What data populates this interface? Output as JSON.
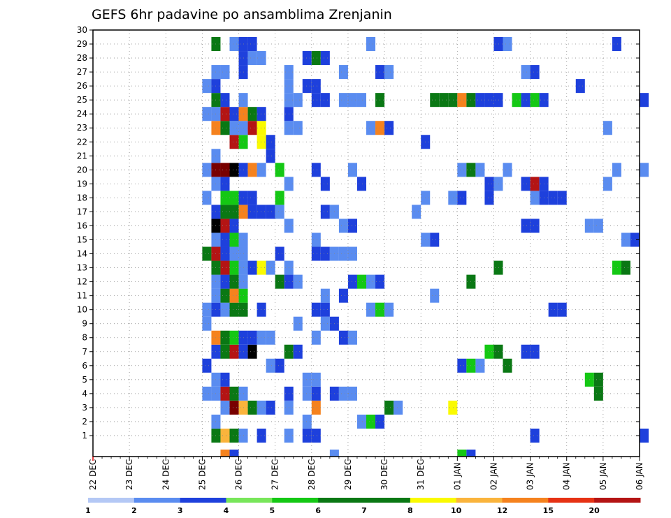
{
  "chart_data": {
    "type": "heatmap",
    "title": "GEFS 6hr padavine po ansamblima Zrenjanin",
    "xlabel": "",
    "ylabel": "",
    "x_tick_labels": [
      "22 DEC",
      "23 DEC",
      "24 DEC",
      "25 DEC",
      "26 DEC",
      "27 DEC",
      "28 DEC",
      "29 DEC",
      "30 DEC",
      "31 DEC",
      "01 JAN",
      "02 JAN",
      "03 JAN",
      "04 JAN",
      "05 JAN",
      "06 JAN"
    ],
    "y_tick_labels": [
      "1",
      "2",
      "3",
      "4",
      "5",
      "6",
      "7",
      "8",
      "9",
      "10",
      "11",
      "12",
      "13",
      "14",
      "15",
      "16",
      "17",
      "18",
      "19",
      "20",
      "21",
      "22",
      "23",
      "24",
      "25",
      "26",
      "27",
      "28",
      "29",
      "30"
    ],
    "x_range_steps": [
      0,
      60
    ],
    "y_range": [
      0,
      30
    ],
    "grid": true,
    "colorbar_levels": [
      "1",
      "2",
      "3",
      "4",
      "5",
      "6",
      "7",
      "8",
      "10",
      "12",
      "15",
      "20"
    ],
    "colorbar_colors": [
      "#b4c8f5",
      "#5a8cf0",
      "#1e40dc",
      "#1e40dc",
      "#78e65a",
      "#14c814",
      "#0a7814",
      "#0a7814",
      "#fafa00",
      "#fab43c",
      "#f5821e",
      "#e63214",
      "#b41414",
      "#780000"
    ],
    "cells": [
      [
        13,
        1,
        6
      ],
      [
        14,
        1,
        9
      ],
      [
        15,
        1,
        6
      ],
      [
        16,
        1,
        1
      ],
      [
        18,
        1,
        2
      ],
      [
        21,
        1,
        1
      ],
      [
        23,
        1,
        3
      ],
      [
        24,
        1,
        3
      ],
      [
        48,
        1,
        2
      ],
      [
        60,
        1,
        3
      ],
      [
        13,
        2,
        1
      ],
      [
        23,
        2,
        1
      ],
      [
        29,
        2,
        1
      ],
      [
        30,
        2,
        5
      ],
      [
        31,
        2,
        3
      ],
      [
        14,
        3,
        1
      ],
      [
        15,
        3,
        13
      ],
      [
        16,
        3,
        9
      ],
      [
        17,
        3,
        6
      ],
      [
        18,
        3,
        1
      ],
      [
        19,
        3,
        2
      ],
      [
        21,
        3,
        1
      ],
      [
        24,
        3,
        10
      ],
      [
        32,
        3,
        6
      ],
      [
        33,
        3,
        1
      ],
      [
        39,
        3,
        8
      ],
      [
        12,
        4,
        1
      ],
      [
        13,
        4,
        1
      ],
      [
        14,
        4,
        12
      ],
      [
        15,
        4,
        7
      ],
      [
        16,
        4,
        1
      ],
      [
        21,
        4,
        2
      ],
      [
        23,
        4,
        1
      ],
      [
        24,
        4,
        3
      ],
      [
        26,
        4,
        2
      ],
      [
        27,
        4,
        1
      ],
      [
        28,
        4,
        1
      ],
      [
        55,
        4,
        6
      ],
      [
        13,
        5,
        1
      ],
      [
        14,
        5,
        3
      ],
      [
        23,
        5,
        1
      ],
      [
        24,
        5,
        1
      ],
      [
        54,
        5,
        5
      ],
      [
        55,
        5,
        6
      ],
      [
        12,
        6,
        2
      ],
      [
        19,
        6,
        1
      ],
      [
        20,
        6,
        3
      ],
      [
        40,
        6,
        2
      ],
      [
        41,
        6,
        5
      ],
      [
        42,
        6,
        1
      ],
      [
        45,
        6,
        6
      ],
      [
        13,
        7,
        2
      ],
      [
        14,
        7,
        7
      ],
      [
        15,
        7,
        12
      ],
      [
        16,
        7,
        3
      ],
      [
        17,
        7,
        14
      ],
      [
        21,
        7,
        6
      ],
      [
        22,
        7,
        2
      ],
      [
        43,
        7,
        5
      ],
      [
        44,
        7,
        7
      ],
      [
        47,
        7,
        3
      ],
      [
        48,
        7,
        2
      ],
      [
        13,
        8,
        10
      ],
      [
        14,
        8,
        6
      ],
      [
        15,
        8,
        5
      ],
      [
        16,
        8,
        3
      ],
      [
        17,
        8,
        3
      ],
      [
        18,
        8,
        1
      ],
      [
        19,
        8,
        1
      ],
      [
        24,
        8,
        1
      ],
      [
        27,
        8,
        2
      ],
      [
        28,
        8,
        1
      ],
      [
        25,
        9,
        1
      ],
      [
        26,
        9,
        3
      ],
      [
        22,
        9,
        1
      ],
      [
        12,
        9,
        1
      ],
      [
        12,
        10,
        1
      ],
      [
        13,
        10,
        3
      ],
      [
        14,
        10,
        1
      ],
      [
        15,
        10,
        7
      ],
      [
        16,
        10,
        7
      ],
      [
        18,
        10,
        3
      ],
      [
        24,
        10,
        3
      ],
      [
        25,
        10,
        3
      ],
      [
        30,
        10,
        1
      ],
      [
        31,
        10,
        5
      ],
      [
        32,
        10,
        1
      ],
      [
        50,
        10,
        3
      ],
      [
        51,
        10,
        3
      ],
      [
        13,
        11,
        1
      ],
      [
        14,
        11,
        6
      ],
      [
        15,
        11,
        10
      ],
      [
        16,
        11,
        5
      ],
      [
        25,
        11,
        1
      ],
      [
        27,
        11,
        3
      ],
      [
        37,
        11,
        1
      ],
      [
        13,
        12,
        1
      ],
      [
        14,
        12,
        2
      ],
      [
        15,
        12,
        6
      ],
      [
        16,
        12,
        1
      ],
      [
        20,
        12,
        6
      ],
      [
        21,
        12,
        3
      ],
      [
        22,
        12,
        1
      ],
      [
        28,
        12,
        3
      ],
      [
        29,
        12,
        5
      ],
      [
        30,
        12,
        1
      ],
      [
        31,
        12,
        3
      ],
      [
        41,
        12,
        7
      ],
      [
        13,
        13,
        6
      ],
      [
        14,
        13,
        12
      ],
      [
        15,
        13,
        5
      ],
      [
        16,
        13,
        1
      ],
      [
        17,
        13,
        3
      ],
      [
        18,
        13,
        8
      ],
      [
        19,
        13,
        1
      ],
      [
        21,
        13,
        1
      ],
      [
        44,
        13,
        6
      ],
      [
        57,
        13,
        5
      ],
      [
        58,
        13,
        6
      ],
      [
        12,
        14,
        6
      ],
      [
        13,
        14,
        12
      ],
      [
        14,
        14,
        3
      ],
      [
        15,
        14,
        1
      ],
      [
        16,
        14,
        1
      ],
      [
        20,
        14,
        3
      ],
      [
        24,
        14,
        3
      ],
      [
        25,
        14,
        2
      ],
      [
        26,
        14,
        1
      ],
      [
        27,
        14,
        1
      ],
      [
        28,
        14,
        1
      ],
      [
        13,
        15,
        1
      ],
      [
        14,
        15,
        3
      ],
      [
        15,
        15,
        5
      ],
      [
        16,
        15,
        1
      ],
      [
        24,
        15,
        1
      ],
      [
        36,
        15,
        1
      ],
      [
        37,
        15,
        2
      ],
      [
        58,
        15,
        1
      ],
      [
        59,
        15,
        3
      ],
      [
        13,
        16,
        14
      ],
      [
        14,
        16,
        12
      ],
      [
        15,
        16,
        3
      ],
      [
        21,
        16,
        1
      ],
      [
        27,
        16,
        1
      ],
      [
        28,
        16,
        2
      ],
      [
        47,
        16,
        2
      ],
      [
        48,
        16,
        3
      ],
      [
        54,
        16,
        1
      ],
      [
        55,
        16,
        1
      ],
      [
        13,
        17,
        2
      ],
      [
        14,
        17,
        6
      ],
      [
        15,
        17,
        6
      ],
      [
        16,
        17,
        10
      ],
      [
        17,
        17,
        2
      ],
      [
        18,
        17,
        2
      ],
      [
        19,
        17,
        2
      ],
      [
        20,
        17,
        1
      ],
      [
        25,
        17,
        2
      ],
      [
        26,
        17,
        1
      ],
      [
        35,
        17,
        1
      ],
      [
        12,
        18,
        1
      ],
      [
        14,
        18,
        5
      ],
      [
        15,
        18,
        5
      ],
      [
        16,
        18,
        2
      ],
      [
        17,
        18,
        2
      ],
      [
        20,
        18,
        5
      ],
      [
        36,
        18,
        1
      ],
      [
        39,
        18,
        1
      ],
      [
        40,
        18,
        3
      ],
      [
        43,
        18,
        2
      ],
      [
        48,
        18,
        1
      ],
      [
        49,
        18,
        3
      ],
      [
        50,
        18,
        2
      ],
      [
        51,
        18,
        2
      ],
      [
        13,
        19,
        1
      ],
      [
        14,
        19,
        3
      ],
      [
        21,
        19,
        1
      ],
      [
        25,
        19,
        3
      ],
      [
        29,
        19,
        2
      ],
      [
        43,
        19,
        2
      ],
      [
        44,
        19,
        1
      ],
      [
        47,
        19,
        3
      ],
      [
        48,
        19,
        12
      ],
      [
        49,
        19,
        3
      ],
      [
        56,
        19,
        1
      ],
      [
        12,
        20,
        1
      ],
      [
        13,
        20,
        13
      ],
      [
        14,
        20,
        13
      ],
      [
        15,
        20,
        14
      ],
      [
        16,
        20,
        2
      ],
      [
        17,
        20,
        10
      ],
      [
        18,
        20,
        1
      ],
      [
        20,
        20,
        5
      ],
      [
        24,
        20,
        2
      ],
      [
        28,
        20,
        1
      ],
      [
        40,
        20,
        1
      ],
      [
        41,
        20,
        6
      ],
      [
        42,
        20,
        1
      ],
      [
        45,
        20,
        1
      ],
      [
        57,
        20,
        1
      ],
      [
        60,
        20,
        1
      ],
      [
        13,
        21,
        1
      ],
      [
        19,
        21,
        3
      ],
      [
        15,
        22,
        12
      ],
      [
        16,
        22,
        5
      ],
      [
        18,
        22,
        8
      ],
      [
        19,
        22,
        2
      ],
      [
        36,
        22,
        3
      ],
      [
        13,
        23,
        10
      ],
      [
        14,
        23,
        7
      ],
      [
        15,
        23,
        1
      ],
      [
        16,
        23,
        1
      ],
      [
        17,
        23,
        12
      ],
      [
        18,
        23,
        8
      ],
      [
        21,
        23,
        1
      ],
      [
        22,
        23,
        1
      ],
      [
        30,
        23,
        1
      ],
      [
        31,
        23,
        10
      ],
      [
        32,
        23,
        2
      ],
      [
        56,
        23,
        1
      ],
      [
        12,
        24,
        1
      ],
      [
        13,
        24,
        1
      ],
      [
        14,
        24,
        12
      ],
      [
        15,
        24,
        2
      ],
      [
        16,
        24,
        10
      ],
      [
        17,
        24,
        7
      ],
      [
        18,
        24,
        2
      ],
      [
        21,
        24,
        2
      ],
      [
        13,
        25,
        7
      ],
      [
        14,
        25,
        2
      ],
      [
        16,
        25,
        1
      ],
      [
        21,
        25,
        1
      ],
      [
        22,
        25,
        1
      ],
      [
        24,
        25,
        2
      ],
      [
        25,
        25,
        3
      ],
      [
        27,
        25,
        1
      ],
      [
        28,
        25,
        1
      ],
      [
        29,
        25,
        1
      ],
      [
        31,
        25,
        7
      ],
      [
        37,
        25,
        6
      ],
      [
        38,
        25,
        7
      ],
      [
        39,
        25,
        6
      ],
      [
        40,
        25,
        10
      ],
      [
        41,
        25,
        6
      ],
      [
        42,
        25,
        3
      ],
      [
        43,
        25,
        2
      ],
      [
        44,
        25,
        3
      ],
      [
        46,
        25,
        5
      ],
      [
        47,
        25,
        2
      ],
      [
        48,
        25,
        5
      ],
      [
        49,
        25,
        2
      ],
      [
        60,
        25,
        2
      ],
      [
        12,
        26,
        1
      ],
      [
        13,
        26,
        3
      ],
      [
        21,
        26,
        1
      ],
      [
        23,
        26,
        2
      ],
      [
        24,
        26,
        3
      ],
      [
        53,
        26,
        2
      ],
      [
        13,
        27,
        1
      ],
      [
        14,
        27,
        1
      ],
      [
        16,
        27,
        2
      ],
      [
        21,
        27,
        1
      ],
      [
        27,
        27,
        1
      ],
      [
        31,
        27,
        2
      ],
      [
        32,
        27,
        1
      ],
      [
        47,
        27,
        1
      ],
      [
        48,
        27,
        3
      ],
      [
        16,
        28,
        2
      ],
      [
        17,
        28,
        1
      ],
      [
        18,
        28,
        1
      ],
      [
        23,
        28,
        2
      ],
      [
        24,
        28,
        7
      ],
      [
        25,
        28,
        2
      ],
      [
        13,
        29,
        6
      ],
      [
        15,
        29,
        1
      ],
      [
        16,
        29,
        3
      ],
      [
        17,
        29,
        2
      ],
      [
        30,
        29,
        1
      ],
      [
        44,
        29,
        3
      ],
      [
        45,
        29,
        1
      ],
      [
        57,
        29,
        3
      ],
      [
        15,
        0,
        3
      ],
      [
        14,
        0,
        10
      ],
      [
        40,
        0,
        5
      ],
      [
        41,
        0,
        3
      ],
      [
        26,
        0,
        1
      ]
    ]
  }
}
